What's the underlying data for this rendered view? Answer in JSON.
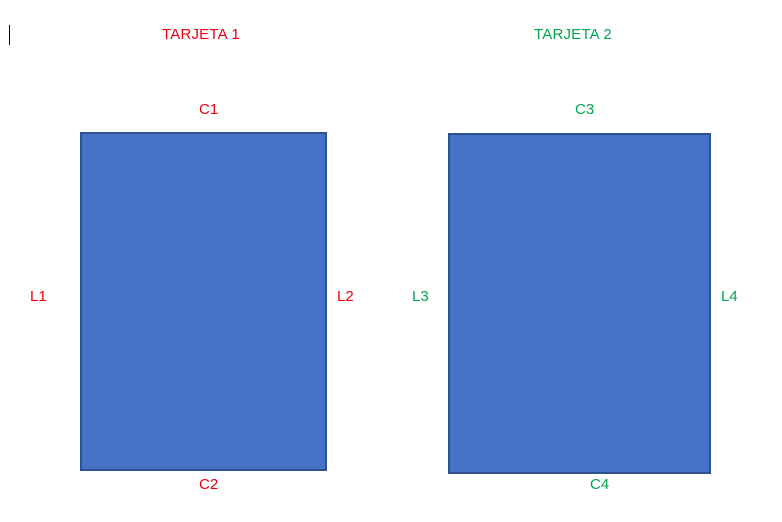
{
  "colors": {
    "card_fill": "#4472c4",
    "card_border": "#2f528f",
    "card1_text": "#e8000f",
    "card2_text": "#00a651"
  },
  "card1": {
    "title": "TARJETA 1",
    "top": "C1",
    "bottom": "C2",
    "left": "L1",
    "right": "L2"
  },
  "card2": {
    "title": "TARJETA 2",
    "top": "C3",
    "bottom": "C4",
    "left": "L3",
    "right": "L4"
  }
}
